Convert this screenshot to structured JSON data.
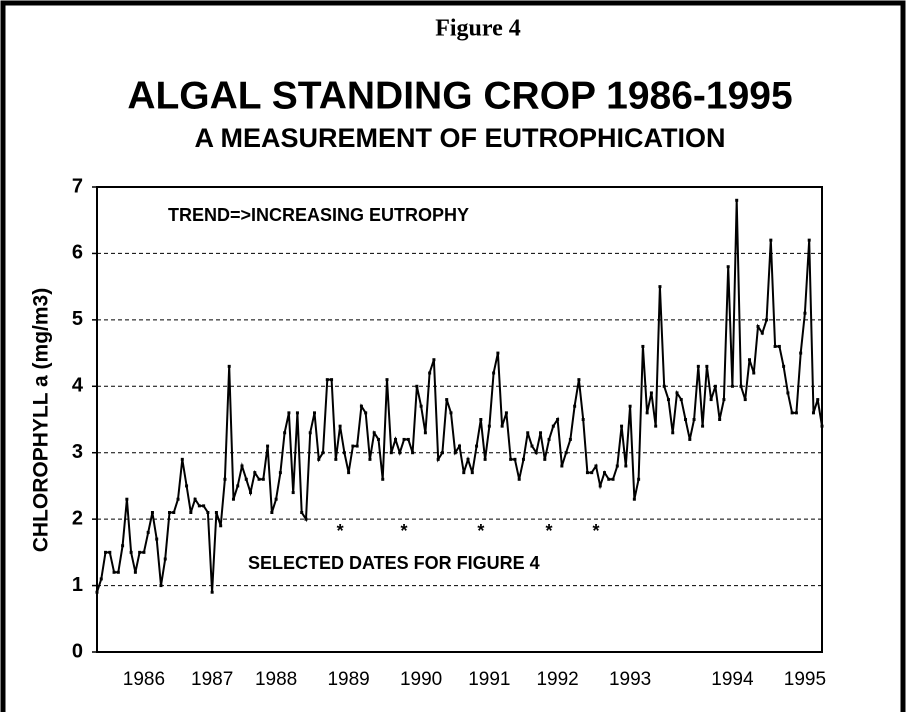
{
  "chart_data": {
    "type": "line",
    "figure_label": "Figure 4",
    "title": "ALGAL STANDING CROP 1986-1995",
    "subtitle": "A MEASUREMENT OF EUTROPHICATION",
    "y_label": "CHLOROPHYLL a (mg/m3)",
    "annotations": [
      "TREND=>INCREASING  EUTROPHY",
      "SELECTED DATES FOR FIGURE 4"
    ],
    "markers": [
      "*",
      "*",
      "*",
      "*",
      "*"
    ],
    "color": "#000000",
    "ylim": [
      0,
      7
    ],
    "yticks": [
      0,
      1,
      2,
      3,
      4,
      5,
      6,
      7
    ],
    "grid": true,
    "categories": [
      null,
      null,
      null,
      null,
      null,
      null,
      null,
      null,
      null,
      null,
      null,
      "1986",
      null,
      null,
      null,
      null,
      null,
      null,
      null,
      null,
      null,
      null,
      null,
      null,
      null,
      null,
      null,
      "1987",
      null,
      null,
      null,
      null,
      null,
      null,
      null,
      null,
      null,
      null,
      null,
      null,
      null,
      null,
      "1988",
      null,
      null,
      null,
      null,
      null,
      null,
      null,
      null,
      null,
      null,
      null,
      null,
      null,
      null,
      null,
      null,
      "1989",
      null,
      null,
      null,
      null,
      null,
      null,
      null,
      null,
      null,
      null,
      null,
      null,
      null,
      null,
      null,
      null,
      "1990",
      null,
      null,
      null,
      null,
      null,
      null,
      null,
      null,
      null,
      null,
      null,
      null,
      null,
      null,
      null,
      "1991",
      null,
      null,
      null,
      null,
      null,
      null,
      null,
      null,
      null,
      null,
      null,
      null,
      null,
      null,
      null,
      "1992",
      null,
      null,
      null,
      null,
      null,
      null,
      null,
      null,
      null,
      null,
      null,
      null,
      null,
      null,
      null,
      null,
      "1993",
      null,
      null,
      null,
      null,
      null,
      null,
      null,
      null,
      null,
      null,
      null,
      null,
      null,
      null,
      null,
      null,
      null,
      null,
      null,
      null,
      null,
      null,
      null,
      "1994",
      null,
      null,
      null,
      null,
      null,
      null,
      null,
      null,
      null,
      null,
      null,
      null,
      null,
      null,
      null,
      null,
      "1995",
      null,
      null,
      null,
      null
    ],
    "values": [
      0.9,
      1.1,
      1.5,
      1.5,
      1.2,
      1.2,
      1.6,
      2.3,
      1.5,
      1.2,
      1.5,
      1.5,
      1.8,
      2.1,
      1.7,
      1.0,
      1.4,
      2.1,
      2.1,
      2.3,
      2.9,
      2.5,
      2.1,
      2.3,
      2.2,
      2.2,
      2.1,
      0.9,
      2.1,
      1.9,
      2.6,
      4.3,
      2.3,
      2.5,
      2.8,
      2.6,
      2.4,
      2.7,
      2.6,
      2.6,
      3.1,
      2.1,
      2.3,
      2.7,
      3.3,
      3.6,
      2.4,
      3.6,
      2.1,
      2.0,
      3.3,
      3.6,
      2.9,
      3.0,
      4.1,
      4.1,
      2.9,
      3.4,
      3.0,
      2.7,
      3.1,
      3.1,
      3.7,
      3.6,
      2.9,
      3.3,
      3.2,
      2.6,
      4.1,
      3.0,
      3.2,
      3.0,
      3.2,
      3.2,
      3.0,
      4.0,
      3.7,
      3.3,
      4.2,
      4.4,
      2.9,
      3.0,
      3.8,
      3.6,
      3.0,
      3.1,
      2.7,
      2.9,
      2.7,
      3.1,
      3.5,
      2.9,
      3.4,
      4.2,
      4.5,
      3.4,
      3.6,
      2.9,
      2.9,
      2.6,
      2.9,
      3.3,
      3.1,
      3.0,
      3.3,
      2.9,
      3.2,
      3.4,
      3.5,
      2.8,
      3.0,
      3.2,
      3.7,
      4.1,
      3.5,
      2.7,
      2.7,
      2.8,
      2.5,
      2.7,
      2.6,
      2.6,
      2.8,
      3.4,
      2.8,
      3.7,
      2.3,
      2.6,
      4.6,
      3.6,
      3.9,
      3.4,
      5.5,
      4.0,
      3.8,
      3.3,
      3.9,
      3.8,
      3.5,
      3.2,
      3.5,
      4.3,
      3.4,
      4.3,
      3.8,
      4.0,
      3.5,
      3.8,
      5.8,
      4.0,
      6.8,
      4.0,
      3.8,
      4.4,
      4.2,
      4.9,
      4.8,
      5.0,
      6.2,
      4.6,
      4.6,
      4.3,
      3.9,
      3.6,
      3.6,
      4.5,
      5.1,
      6.2,
      3.6,
      3.8,
      3.4
    ]
  }
}
